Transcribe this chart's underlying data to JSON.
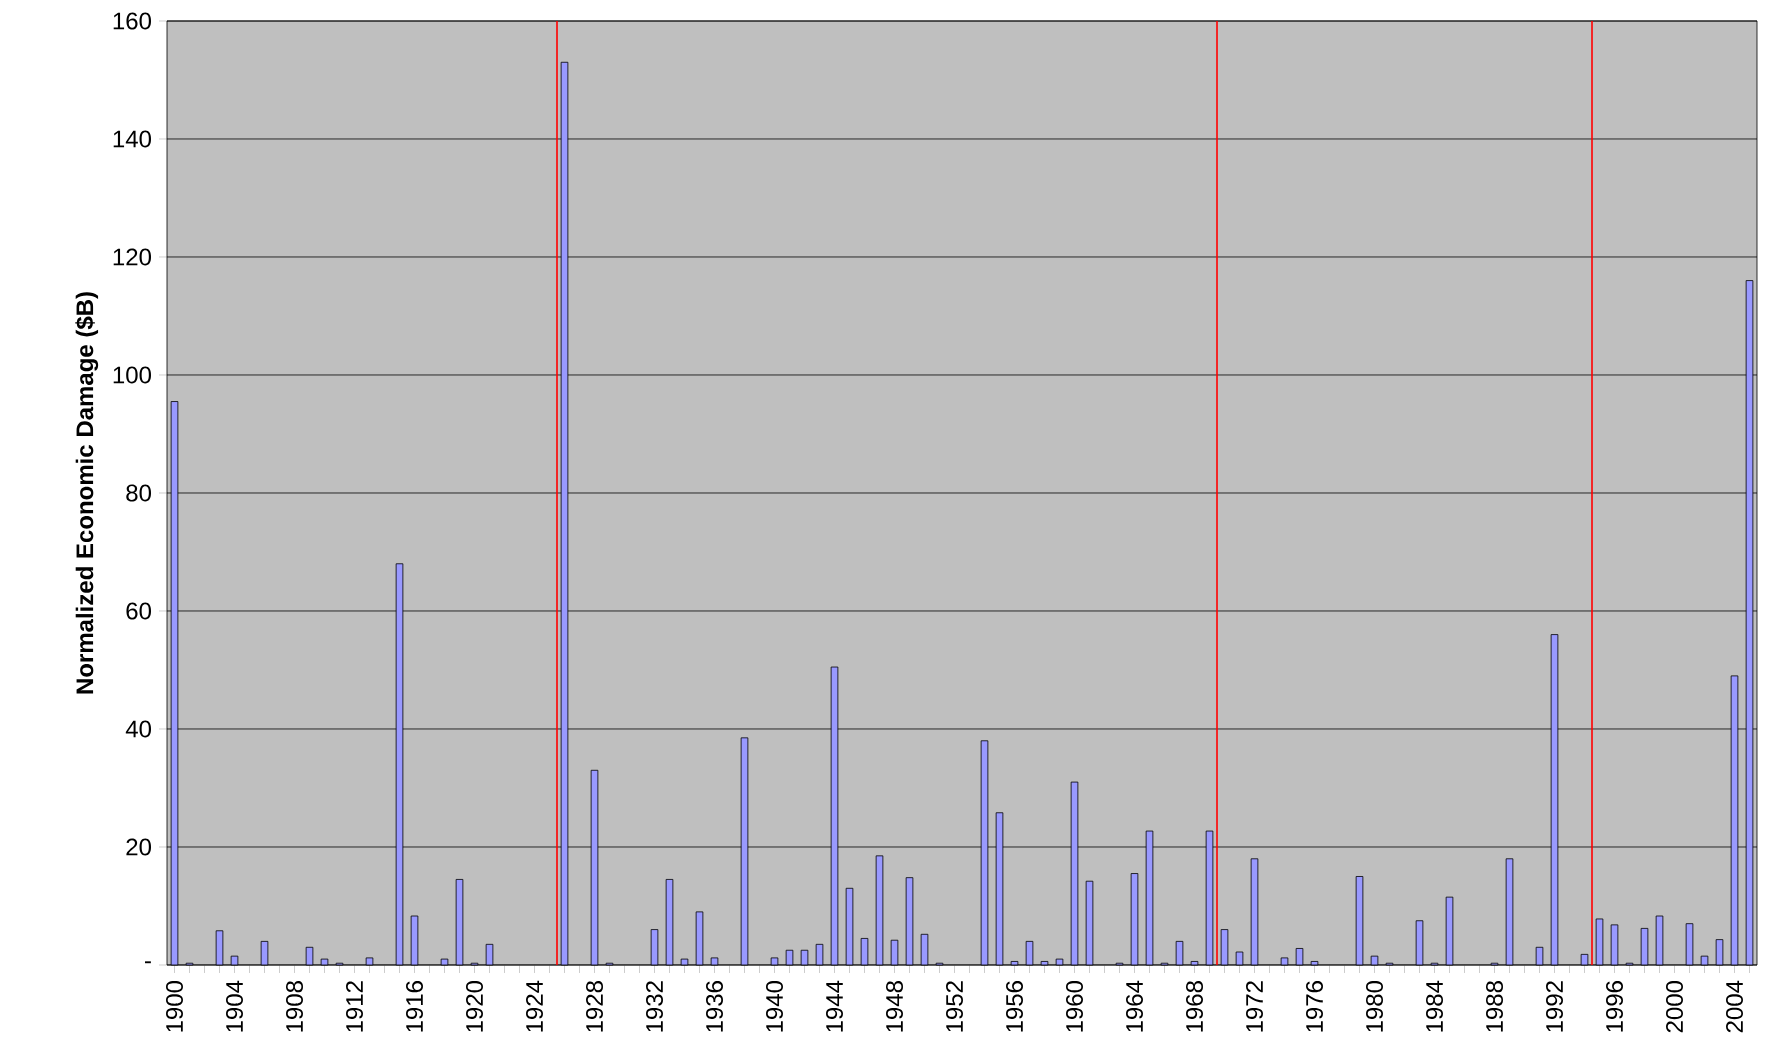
{
  "chart_data": {
    "type": "bar",
    "ylabel": "Normalized Economic Damage ($B)",
    "categories": [
      "1900",
      null,
      null,
      null,
      "1904",
      null,
      null,
      null,
      "1908",
      null,
      null,
      null,
      "1912",
      null,
      null,
      null,
      "1916",
      null,
      null,
      null,
      "1920",
      null,
      null,
      null,
      "1924",
      null,
      null,
      null,
      "1928",
      null,
      null,
      null,
      "1932",
      null,
      null,
      null,
      "1936",
      null,
      null,
      null,
      "1940",
      null,
      null,
      null,
      "1944",
      null,
      null,
      null,
      "1948",
      null,
      null,
      null,
      "1952",
      null,
      null,
      null,
      "1956",
      null,
      null,
      null,
      "1960",
      null,
      null,
      null,
      "1964",
      null,
      null,
      null,
      "1968",
      null,
      null,
      null,
      "1972",
      null,
      null,
      null,
      "1976",
      null,
      null,
      null,
      "1980",
      null,
      null,
      null,
      "1984",
      null,
      null,
      null,
      "1988",
      null,
      null,
      null,
      "1992",
      null,
      null,
      null,
      "1996",
      null,
      null,
      null,
      "2000",
      null,
      null,
      null,
      "2004",
      null
    ],
    "values": [
      95.5,
      0.3,
      0,
      5.8,
      1.5,
      0,
      4,
      0,
      0,
      3,
      1,
      0.3,
      0,
      1.2,
      0,
      68,
      8.3,
      0,
      1,
      14.5,
      0.3,
      3.5,
      0,
      0,
      0,
      0,
      153,
      0,
      33,
      0.3,
      0,
      0,
      6,
      14.5,
      1,
      9,
      1.2,
      0,
      38.5,
      0,
      1.2,
      2.5,
      2.5,
      3.5,
      50.5,
      13,
      4.5,
      18.5,
      4.2,
      14.8,
      5.2,
      0.3,
      0,
      0,
      38,
      25.8,
      0.6,
      4,
      0.6,
      1,
      31,
      14.2,
      0,
      0.3,
      15.5,
      22.7,
      0.3,
      4,
      0.6,
      22.7,
      6,
      2.2,
      18,
      0,
      1.2,
      2.8,
      0.6,
      0,
      0,
      15,
      1.5,
      0.3,
      0,
      7.5,
      0.3,
      11.5,
      0,
      0,
      0.3,
      18,
      0,
      3,
      56,
      0,
      1.8,
      7.8,
      6.8,
      0.3,
      6.2,
      8.3,
      0,
      7,
      1.5,
      4.3,
      49,
      116
    ],
    "color": "#9999ff",
    "ylim": [
      0,
      160
    ],
    "yticks": [
      {
        "value": 0,
        "label": "-"
      },
      20,
      40,
      60,
      80,
      100,
      120,
      140,
      160
    ],
    "grid": "y"
  }
}
